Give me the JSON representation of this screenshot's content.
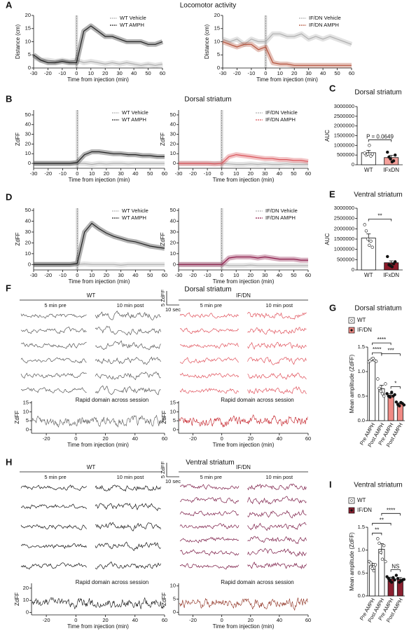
{
  "chart_data": [
    {
      "type": "line",
      "panel": "A",
      "title": "Locomotor activity",
      "x": [
        -30,
        -25,
        -20,
        -15,
        -10,
        -5,
        0,
        5,
        10,
        15,
        20,
        25,
        30,
        35,
        40,
        45,
        50,
        55,
        60
      ],
      "series": [
        {
          "name": "WT Vehicle",
          "color": "#b0b0b0",
          "values": [
            4,
            3,
            3,
            2.5,
            3,
            2.5,
            3,
            2,
            2.5,
            2,
            1.5,
            2,
            1.5,
            2,
            1.5,
            1,
            1.5,
            1,
            1.5
          ]
        },
        {
          "name": "WT AMPH",
          "color": "#222222",
          "values": [
            5,
            3,
            2,
            2,
            2.5,
            2,
            2,
            14,
            16,
            14,
            12,
            12,
            11,
            10,
            10,
            10,
            9,
            9,
            10
          ]
        }
      ],
      "xlim": [
        -30,
        60
      ],
      "xticks": [
        -30,
        -20,
        -10,
        0,
        10,
        20,
        30,
        40,
        50,
        60
      ],
      "ylim": [
        0,
        20
      ],
      "yticks": [
        0,
        5,
        10,
        15,
        20
      ],
      "xlabel": "Time from injection (min)",
      "ylabel": "Distance (cm)"
    },
    {
      "type": "line",
      "x": [
        -30,
        -25,
        -20,
        -15,
        -10,
        -5,
        0,
        5,
        10,
        15,
        20,
        25,
        30,
        35,
        40,
        45,
        50,
        55,
        60
      ],
      "series": [
        {
          "name": "IF/DN Vehicle",
          "color": "#b0b0b0",
          "values": [
            11,
            10,
            11,
            9,
            11,
            10,
            10,
            13,
            13,
            12,
            12,
            13,
            11,
            12,
            11,
            12,
            11,
            10,
            9
          ]
        },
        {
          "name": "IF/DN AMPH",
          "color": "#b5533c",
          "values": [
            10,
            9,
            8,
            9,
            9,
            7,
            8,
            2,
            1.5,
            1.5,
            1,
            1,
            1,
            1,
            1,
            1,
            1,
            1,
            1
          ]
        }
      ],
      "xlim": [
        -30,
        60
      ],
      "xticks": [
        -30,
        -20,
        -10,
        0,
        10,
        20,
        30,
        40,
        50,
        60
      ],
      "ylim": [
        0,
        20
      ],
      "yticks": [
        0,
        5,
        10,
        15,
        20
      ],
      "xlabel": "Time from injection (min)",
      "ylabel": "Distance (cm)"
    },
    {
      "type": "line",
      "panel": "B",
      "title": "Dorsal striatum",
      "x": [
        -30,
        -25,
        -20,
        -15,
        -10,
        -5,
        0,
        5,
        10,
        15,
        20,
        25,
        30,
        35,
        40,
        45,
        50,
        55,
        60
      ],
      "series": [
        {
          "name": "WT Vehicle",
          "color": "#b0b0b0",
          "values": [
            0,
            0,
            0,
            0,
            0,
            0,
            0,
            0,
            -1,
            0,
            -0.5,
            0,
            0,
            -0.5,
            0,
            0,
            0,
            0,
            0
          ]
        },
        {
          "name": "WT AMPH",
          "color": "#222222",
          "values": [
            0,
            0,
            0,
            0,
            0,
            0,
            1,
            9,
            12,
            12,
            11,
            10,
            10,
            9,
            9,
            8,
            8,
            7,
            7
          ]
        }
      ],
      "xlim": [
        -30,
        60
      ],
      "xticks": [
        -30,
        -20,
        -10,
        0,
        10,
        20,
        30,
        40,
        50,
        60
      ],
      "ylim": [
        -5,
        55
      ],
      "yticks": [
        0,
        10,
        20,
        30,
        40,
        50
      ],
      "xlabel": "Time from injection (min)",
      "ylabel": "ZdFF"
    },
    {
      "type": "line",
      "x": [
        -30,
        -25,
        -20,
        -15,
        -10,
        -5,
        0,
        5,
        10,
        15,
        20,
        25,
        30,
        35,
        40,
        45,
        50,
        55,
        60
      ],
      "series": [
        {
          "name": "IF/DN Vehicle",
          "color": "#b0b0b0",
          "values": [
            0,
            0,
            0,
            0,
            0,
            0,
            0,
            -0.5,
            -1,
            -1,
            -0.5,
            -1,
            -0.5,
            -1,
            -1,
            -0.5,
            -1,
            -1,
            -1
          ]
        },
        {
          "name": "IF/DN AMPH",
          "color": "#d9545a",
          "values": [
            0,
            0,
            0,
            0,
            0,
            -0.5,
            0,
            7,
            9,
            8,
            7,
            6,
            5,
            5,
            4,
            4,
            3,
            3,
            2
          ]
        }
      ],
      "xlim": [
        -30,
        60
      ],
      "xticks": [
        -30,
        -20,
        -10,
        0,
        10,
        20,
        30,
        40,
        50,
        60
      ],
      "ylim": [
        -5,
        55
      ],
      "yticks": [
        0,
        10,
        20,
        30,
        40,
        50
      ],
      "xlabel": "Time from injection (min)",
      "ylabel": "ZdFF"
    },
    {
      "type": "bar",
      "panel": "C",
      "title": "Dorsal striatum",
      "categories": [
        "WT",
        "IFxDN"
      ],
      "values": [
        620000,
        370000
      ],
      "errors": [
        120000,
        110000
      ],
      "points": [
        [
          600000,
          500000,
          550000,
          1000000,
          450000,
          550000
        ],
        [
          650000,
          400000,
          300000,
          150000,
          200000,
          500000
        ]
      ],
      "colors": [
        "#ffffff",
        "#f4a09a"
      ],
      "ylabel": "AUC",
      "ylim": [
        0,
        3000000
      ],
      "yticks": [
        0,
        500000,
        1000000,
        1500000,
        2000000,
        2500000,
        3000000
      ],
      "annotations": [
        "P = 0.0649"
      ]
    },
    {
      "type": "line",
      "panel": "D",
      "x": [
        -30,
        -25,
        -20,
        -15,
        -10,
        -5,
        0,
        5,
        10,
        15,
        20,
        25,
        30,
        35,
        40,
        45,
        50,
        55,
        60
      ],
      "series": [
        {
          "name": "WT Vehicle",
          "color": "#b0b0b0",
          "values": [
            0,
            0,
            0,
            0,
            0,
            0,
            0,
            0.5,
            0,
            0,
            0,
            0,
            -0.5,
            0,
            0,
            0,
            0,
            0,
            0
          ]
        },
        {
          "name": "WT AMPH",
          "color": "#222222",
          "values": [
            0,
            0,
            0,
            0,
            0,
            0,
            1,
            30,
            38,
            33,
            29,
            26,
            24,
            22,
            21,
            19,
            17,
            16,
            15
          ]
        }
      ],
      "xlim": [
        -30,
        60
      ],
      "xticks": [
        -30,
        -20,
        -10,
        0,
        10,
        20,
        30,
        40,
        50,
        60
      ],
      "ylim": [
        -5,
        52
      ],
      "yticks": [
        0,
        10,
        20,
        30,
        40,
        50
      ],
      "xlabel": "Time from injection (min)",
      "ylabel": "ZdFF"
    },
    {
      "type": "line",
      "x": [
        -30,
        -25,
        -20,
        -15,
        -10,
        -5,
        0,
        5,
        10,
        15,
        20,
        25,
        30,
        35,
        40,
        45,
        50,
        55,
        60
      ],
      "series": [
        {
          "name": "IF/DN Vehicle",
          "color": "#b0b0b0",
          "values": [
            0,
            0,
            0,
            0,
            0,
            0,
            0,
            -1,
            -1,
            -1,
            -0.5,
            -1,
            -1,
            -1,
            -1,
            -1,
            -1,
            -1,
            -1
          ]
        },
        {
          "name": "IF/DN AMPH",
          "color": "#8c1c4a",
          "values": [
            0,
            0,
            0,
            0,
            0,
            0,
            0,
            6,
            7,
            7,
            7,
            6,
            7,
            6,
            5,
            5,
            5,
            4,
            4
          ]
        }
      ],
      "xlim": [
        -30,
        60
      ],
      "xticks": [
        -30,
        -20,
        -10,
        0,
        10,
        20,
        30,
        40,
        50,
        60
      ],
      "ylim": [
        -5,
        52
      ],
      "yticks": [
        0,
        10,
        20,
        30,
        40,
        50
      ],
      "xlabel": "Time from injection (min)",
      "ylabel": "ZdFF"
    },
    {
      "type": "bar",
      "panel": "E",
      "title": "Ventral striatum",
      "categories": [
        "WT",
        "IFxDN"
      ],
      "values": [
        1550000,
        350000
      ],
      "errors": [
        200000,
        90000
      ],
      "points": [
        [
          2200000,
          1900000,
          1500000,
          1200000,
          1400000,
          1100000
        ],
        [
          650000,
          250000,
          200000,
          150000,
          300000,
          400000
        ]
      ],
      "colors": [
        "#ffffff",
        "#8b1a2a"
      ],
      "ylabel": "AUC",
      "ylim": [
        0,
        3000000
      ],
      "yticks": [
        0,
        500000,
        1000000,
        1500000,
        2000000,
        2500000,
        3000000
      ],
      "annotations": [
        "**"
      ]
    },
    {
      "type": "traces",
      "panel": "F",
      "title": "Dorsal striatum",
      "scale_y": "5 ZdFF",
      "scale_x": "10 sec",
      "groups": [
        {
          "name": "WT",
          "pre": "5 min pre",
          "post": "10 min post",
          "color": "#555555"
        },
        {
          "name": "IF/DN",
          "pre": "5 min pre",
          "post": "10 min post",
          "color": "#e0505a"
        }
      ]
    },
    {
      "type": "noise",
      "title": "Rapid domain across session",
      "color": "#555555",
      "xlim": [
        -30,
        60
      ],
      "xticks": [
        -20,
        0,
        20,
        40,
        60
      ],
      "ylim": [
        -2,
        16
      ],
      "yticks": [
        0,
        5,
        10,
        15
      ],
      "xlabel": "Time from injection (min)",
      "ylabel": "ZdFF"
    },
    {
      "type": "noise",
      "title": "Rapid domain across session",
      "color": "#c0141c",
      "xlim": [
        -30,
        60
      ],
      "xticks": [
        -20,
        0,
        20,
        40,
        60
      ],
      "ylim": [
        -2,
        16
      ],
      "yticks": [
        0,
        5,
        10,
        15
      ],
      "xlabel": "Time from injection (min)",
      "ylabel": "ZdFF"
    },
    {
      "type": "bar",
      "panel": "G",
      "title": "Dorsal striatum",
      "legend": [
        "WT",
        "IF/DN"
      ],
      "categories": [
        "Pre AMPH",
        "Post AMPH",
        "Pre AMPH",
        "Post AMPH"
      ],
      "values": [
        1.23,
        0.65,
        0.52,
        0.35
      ],
      "errors": [
        0.02,
        0.07,
        0.03,
        0.02
      ],
      "points": [
        [
          1.2,
          1.22,
          1.25,
          1.27,
          1.23,
          1.21
        ],
        [
          0.85,
          0.66,
          0.6,
          0.55,
          0.5,
          0.75
        ],
        [
          0.55,
          0.5,
          0.48,
          0.58,
          0.5,
          0.53
        ],
        [
          0.38,
          0.33,
          0.3,
          0.37,
          0.35,
          0.32
        ]
      ],
      "colors": [
        "#ffffff",
        "#ffffff",
        "#f08a84",
        "#f08a84"
      ],
      "ylabel": "Mean amplitude (ZdFF)",
      "ylim": [
        0,
        1.5
      ],
      "yticks": [
        {
          "value": 0,
          "label": "0.0"
        },
        0.5,
        {
          "value": 1,
          "label": "1.0"
        },
        1.5
      ],
      "annotations": [
        "****",
        "****",
        "***",
        "*"
      ]
    },
    {
      "type": "traces",
      "panel": "H",
      "title": "Ventral striatum",
      "scale_y": "5 ZdFF",
      "scale_x": "10 sec",
      "groups": [
        {
          "name": "WT",
          "pre": "5 min pre",
          "post": "10 min post",
          "color": "#111111"
        },
        {
          "name": "IF/DN",
          "pre": "5 min pre",
          "post": "10 min post",
          "color": "#7a1a45"
        }
      ]
    },
    {
      "type": "noise",
      "title": "Rapid domain across session",
      "color": "#111111",
      "xlim": [
        -30,
        60
      ],
      "xticks": [
        -20,
        0,
        20,
        40,
        60
      ],
      "ylim": [
        -2,
        24
      ],
      "yticks": [
        0,
        10,
        20
      ],
      "xlabel": "Time from injection (min)",
      "ylabel": "ZdFF"
    },
    {
      "type": "noise",
      "title": "Rapid domain across session",
      "color": "#8b2a1a",
      "xlim": [
        -30,
        60
      ],
      "xticks": [
        -20,
        0,
        20,
        40,
        60
      ],
      "ylim": [
        -1,
        11
      ],
      "yticks": [
        0,
        5,
        10
      ],
      "xlabel": "Time from injection (min)",
      "ylabel": "ZdFF"
    },
    {
      "type": "bar",
      "panel": "I",
      "title": "Ventral striatum",
      "legend": [
        "WT",
        "IF/DN"
      ],
      "categories": [
        "Pre AMPH",
        "Post AMPH",
        "Pre AMPH",
        "Post AMPH"
      ],
      "values": [
        0.66,
        1.02,
        0.37,
        0.36
      ],
      "errors": [
        0.05,
        0.12,
        0.04,
        0.04
      ],
      "points": [
        [
          0.75,
          0.72,
          0.6,
          0.55,
          0.68
        ],
        [
          1.25,
          1.15,
          0.95,
          0.8,
          1.1,
          0.75
        ],
        [
          0.42,
          0.38,
          0.33,
          0.3,
          0.4,
          0.35
        ],
        [
          0.45,
          0.38,
          0.3,
          0.32,
          0.35,
          0.36
        ]
      ],
      "colors": [
        "#ffffff",
        "#ffffff",
        "#8b2030",
        "#8b2030"
      ],
      "ylabel": "Mean amplitude (ZdFF)",
      "ylim": [
        0,
        1.5
      ],
      "yticks": [
        {
          "value": 0,
          "label": "0.0"
        },
        0.5,
        {
          "value": 1,
          "label": "1.0"
        },
        1.5
      ],
      "annotations": [
        "**",
        "**",
        "****",
        "NS"
      ]
    }
  ]
}
